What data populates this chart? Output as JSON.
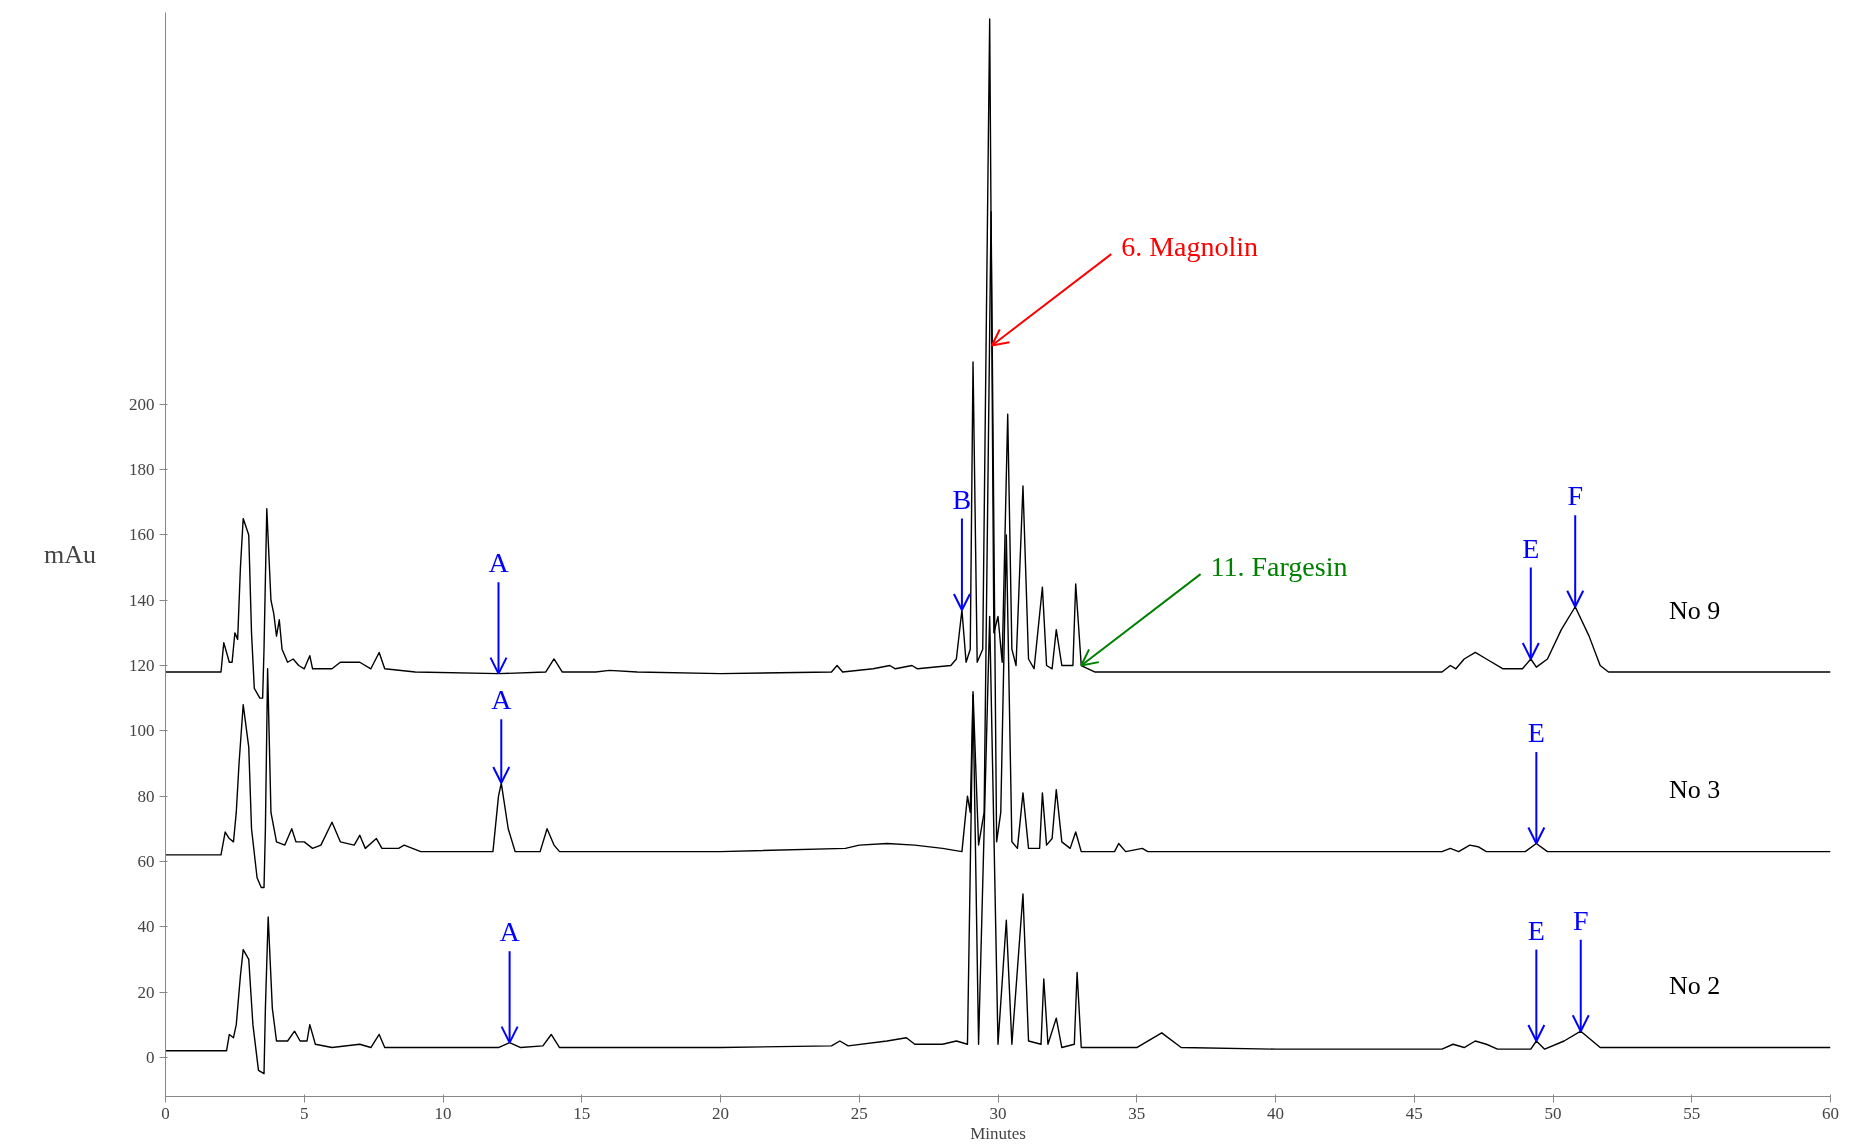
{
  "chart_data": {
    "type": "line",
    "xlabel": "Minutes",
    "ylabel": "mAu",
    "xlim": [
      0,
      60
    ],
    "xticks": [
      0,
      5,
      10,
      15,
      20,
      25,
      30,
      35,
      40,
      45,
      50,
      55,
      60
    ],
    "ylim": [
      -12,
      320
    ],
    "yticks": [
      0,
      20,
      40,
      60,
      80,
      100,
      120,
      140,
      160,
      180,
      200
    ],
    "grid": false,
    "legend": false,
    "marker": "none",
    "line_style": "solid",
    "series": [
      {
        "name": "No 9",
        "color": "#000000",
        "x": [
          0,
          2.0,
          2.1,
          2.3,
          2.4,
          2.5,
          2.6,
          2.7,
          2.8,
          3.0,
          3.1,
          3.2,
          3.4,
          3.5,
          3.55,
          3.65,
          3.8,
          3.9,
          4.0,
          4.1,
          4.2,
          4.4,
          4.6,
          4.8,
          5.0,
          5.2,
          5.3,
          6.0,
          6.3,
          7.0,
          7.4,
          7.7,
          7.9,
          9,
          12,
          13.7,
          14.0,
          14.3,
          15.5,
          16,
          17,
          20,
          24,
          24.2,
          24.4,
          25.5,
          26.1,
          26.3,
          26.9,
          27.1,
          28.3,
          28.5,
          28.7,
          28.85,
          29.0,
          29.1,
          29.25,
          29.45,
          29.7,
          29.78,
          29.85,
          30.0,
          30.15,
          30.35,
          30.5,
          30.65,
          30.9,
          31.1,
          31.3,
          31.6,
          31.75,
          31.95,
          32.1,
          32.3,
          32.7,
          32.8,
          33.0,
          33.5,
          40,
          46,
          46.3,
          46.5,
          46.8,
          47.2,
          47.6,
          48.2,
          48.9,
          49.2,
          49.4,
          49.8,
          50.3,
          50.8,
          51.3,
          51.7,
          52,
          60
        ],
        "values": [
          118,
          118,
          127,
          121,
          121,
          130,
          128,
          150,
          165,
          160,
          130,
          113,
          110,
          110,
          125,
          168,
          140,
          136,
          129,
          134,
          125,
          121,
          122,
          120,
          119,
          123,
          119,
          119,
          121,
          121,
          119,
          124,
          119,
          118,
          117.5,
          118,
          122,
          118,
          118,
          118.5,
          118,
          117.5,
          118,
          120,
          118,
          119,
          120,
          119,
          120,
          119,
          120,
          122,
          137,
          121,
          125,
          213,
          121,
          125,
          318,
          218,
          130,
          135,
          121,
          197,
          125,
          120,
          175,
          122,
          119,
          144,
          120,
          119,
          131,
          120,
          120,
          145,
          120,
          118,
          118,
          118,
          120,
          119,
          122,
          124,
          122,
          119,
          119,
          122,
          119.5,
          122,
          131,
          138,
          129,
          120,
          118,
          118
        ]
      },
      {
        "name": "No 3",
        "color": "#000000",
        "x": [
          0,
          2.0,
          2.15,
          2.3,
          2.45,
          2.55,
          2.65,
          2.8,
          3.0,
          3.1,
          3.3,
          3.45,
          3.55,
          3.6,
          3.68,
          3.8,
          4.0,
          4.3,
          4.55,
          4.7,
          5.0,
          5.3,
          5.6,
          6.0,
          6.3,
          6.8,
          7.0,
          7.2,
          7.6,
          7.8,
          8.4,
          8.6,
          9.2,
          11.8,
          12.0,
          12.1,
          12.35,
          12.6,
          13.5,
          13.75,
          14.0,
          14.2,
          20,
          24.5,
          25,
          26,
          27,
          28,
          28.7,
          28.9,
          29.0,
          29.1,
          29.3,
          29.5,
          29.75,
          29.95,
          30.1,
          30.3,
          30.5,
          30.7,
          30.9,
          31.1,
          31.5,
          31.6,
          31.75,
          31.95,
          32.1,
          32.3,
          32.6,
          32.8,
          33.0,
          34.2,
          34.35,
          34.6,
          35.2,
          35.4,
          40,
          46,
          46.3,
          46.6,
          47.0,
          47.3,
          47.6,
          49.0,
          49.4,
          49.8,
          60
        ],
        "values": [
          62,
          62,
          69,
          67,
          66,
          75,
          90,
          108,
          95,
          70,
          55,
          52,
          52,
          70,
          119,
          75,
          66,
          65,
          70,
          66,
          66,
          64,
          65,
          72,
          66,
          65,
          68,
          64,
          67,
          64,
          64,
          65,
          63,
          63,
          80,
          84,
          70,
          63,
          63,
          70,
          65,
          63,
          63,
          64,
          65,
          65.5,
          65,
          64,
          63,
          80,
          75,
          112,
          65,
          75,
          259,
          66,
          75,
          160,
          66,
          64,
          81,
          64,
          64,
          81,
          65,
          67,
          82,
          66,
          64,
          69,
          63,
          63,
          65.5,
          63,
          64,
          63,
          63,
          63,
          64,
          63,
          65,
          64.5,
          63,
          63,
          65.5,
          63,
          63
        ]
      },
      {
        "name": "No 2",
        "color": "#000000",
        "x": [
          0,
          2.2,
          2.3,
          2.45,
          2.55,
          2.7,
          2.8,
          3.0,
          3.15,
          3.35,
          3.55,
          3.6,
          3.7,
          3.85,
          4.0,
          4.4,
          4.65,
          4.85,
          5.1,
          5.2,
          5.4,
          6.0,
          7.0,
          7.4,
          7.7,
          7.9,
          9.5,
          12,
          12.4,
          12.8,
          13.6,
          13.9,
          14.2,
          20,
          24,
          24.3,
          24.6,
          26,
          26.7,
          27,
          28,
          28.5,
          28.9,
          29.1,
          29.3,
          29.7,
          30.0,
          30.3,
          30.5,
          30.9,
          31.1,
          31.55,
          31.65,
          31.8,
          32.1,
          32.3,
          32.75,
          32.85,
          33.0,
          35,
          35.9,
          36.6,
          40,
          46,
          46.4,
          46.8,
          47.2,
          47.6,
          48,
          49.2,
          49.4,
          49.7,
          50.4,
          51.0,
          51.7,
          60
        ],
        "values": [
          2,
          2,
          7,
          6,
          10,
          25,
          33,
          30,
          10,
          -4,
          -5,
          15,
          43,
          15,
          5,
          5,
          8,
          5,
          5,
          10,
          4,
          3,
          4,
          3,
          7,
          3,
          3,
          3,
          4.5,
          3,
          3.5,
          7,
          3,
          3,
          3.5,
          5,
          3.5,
          5,
          6,
          4,
          4,
          5,
          4,
          111,
          4,
          135,
          4,
          42,
          4,
          50,
          5,
          4,
          24,
          4,
          12,
          3,
          4,
          26,
          3,
          3,
          7.5,
          3,
          2.5,
          2.5,
          4,
          3,
          5,
          4,
          2.5,
          2.5,
          5,
          2.5,
          5,
          8,
          3,
          3
        ]
      }
    ],
    "annotations": [
      {
        "text": "A",
        "x": 12,
        "y": 117.5
      },
      {
        "text": "B",
        "x": 28.7,
        "y": 137
      },
      {
        "text": "E",
        "x": 49.2,
        "y": 122
      },
      {
        "text": "F",
        "x": 50.8,
        "y": 138
      },
      {
        "text": "A",
        "x": 12.1,
        "y": 84
      },
      {
        "text": "E",
        "x": 49.4,
        "y": 65.5
      },
      {
        "text": "A",
        "x": 12.4,
        "y": 4.5
      },
      {
        "text": "E",
        "x": 49.4,
        "y": 5
      },
      {
        "text": "F",
        "x": 51.0,
        "y": 8
      },
      {
        "text": "6. Magnolin",
        "x": 29.78,
        "y": 218
      },
      {
        "text": "11. Fargesin",
        "x": 33.0,
        "y": 120
      }
    ]
  }
}
